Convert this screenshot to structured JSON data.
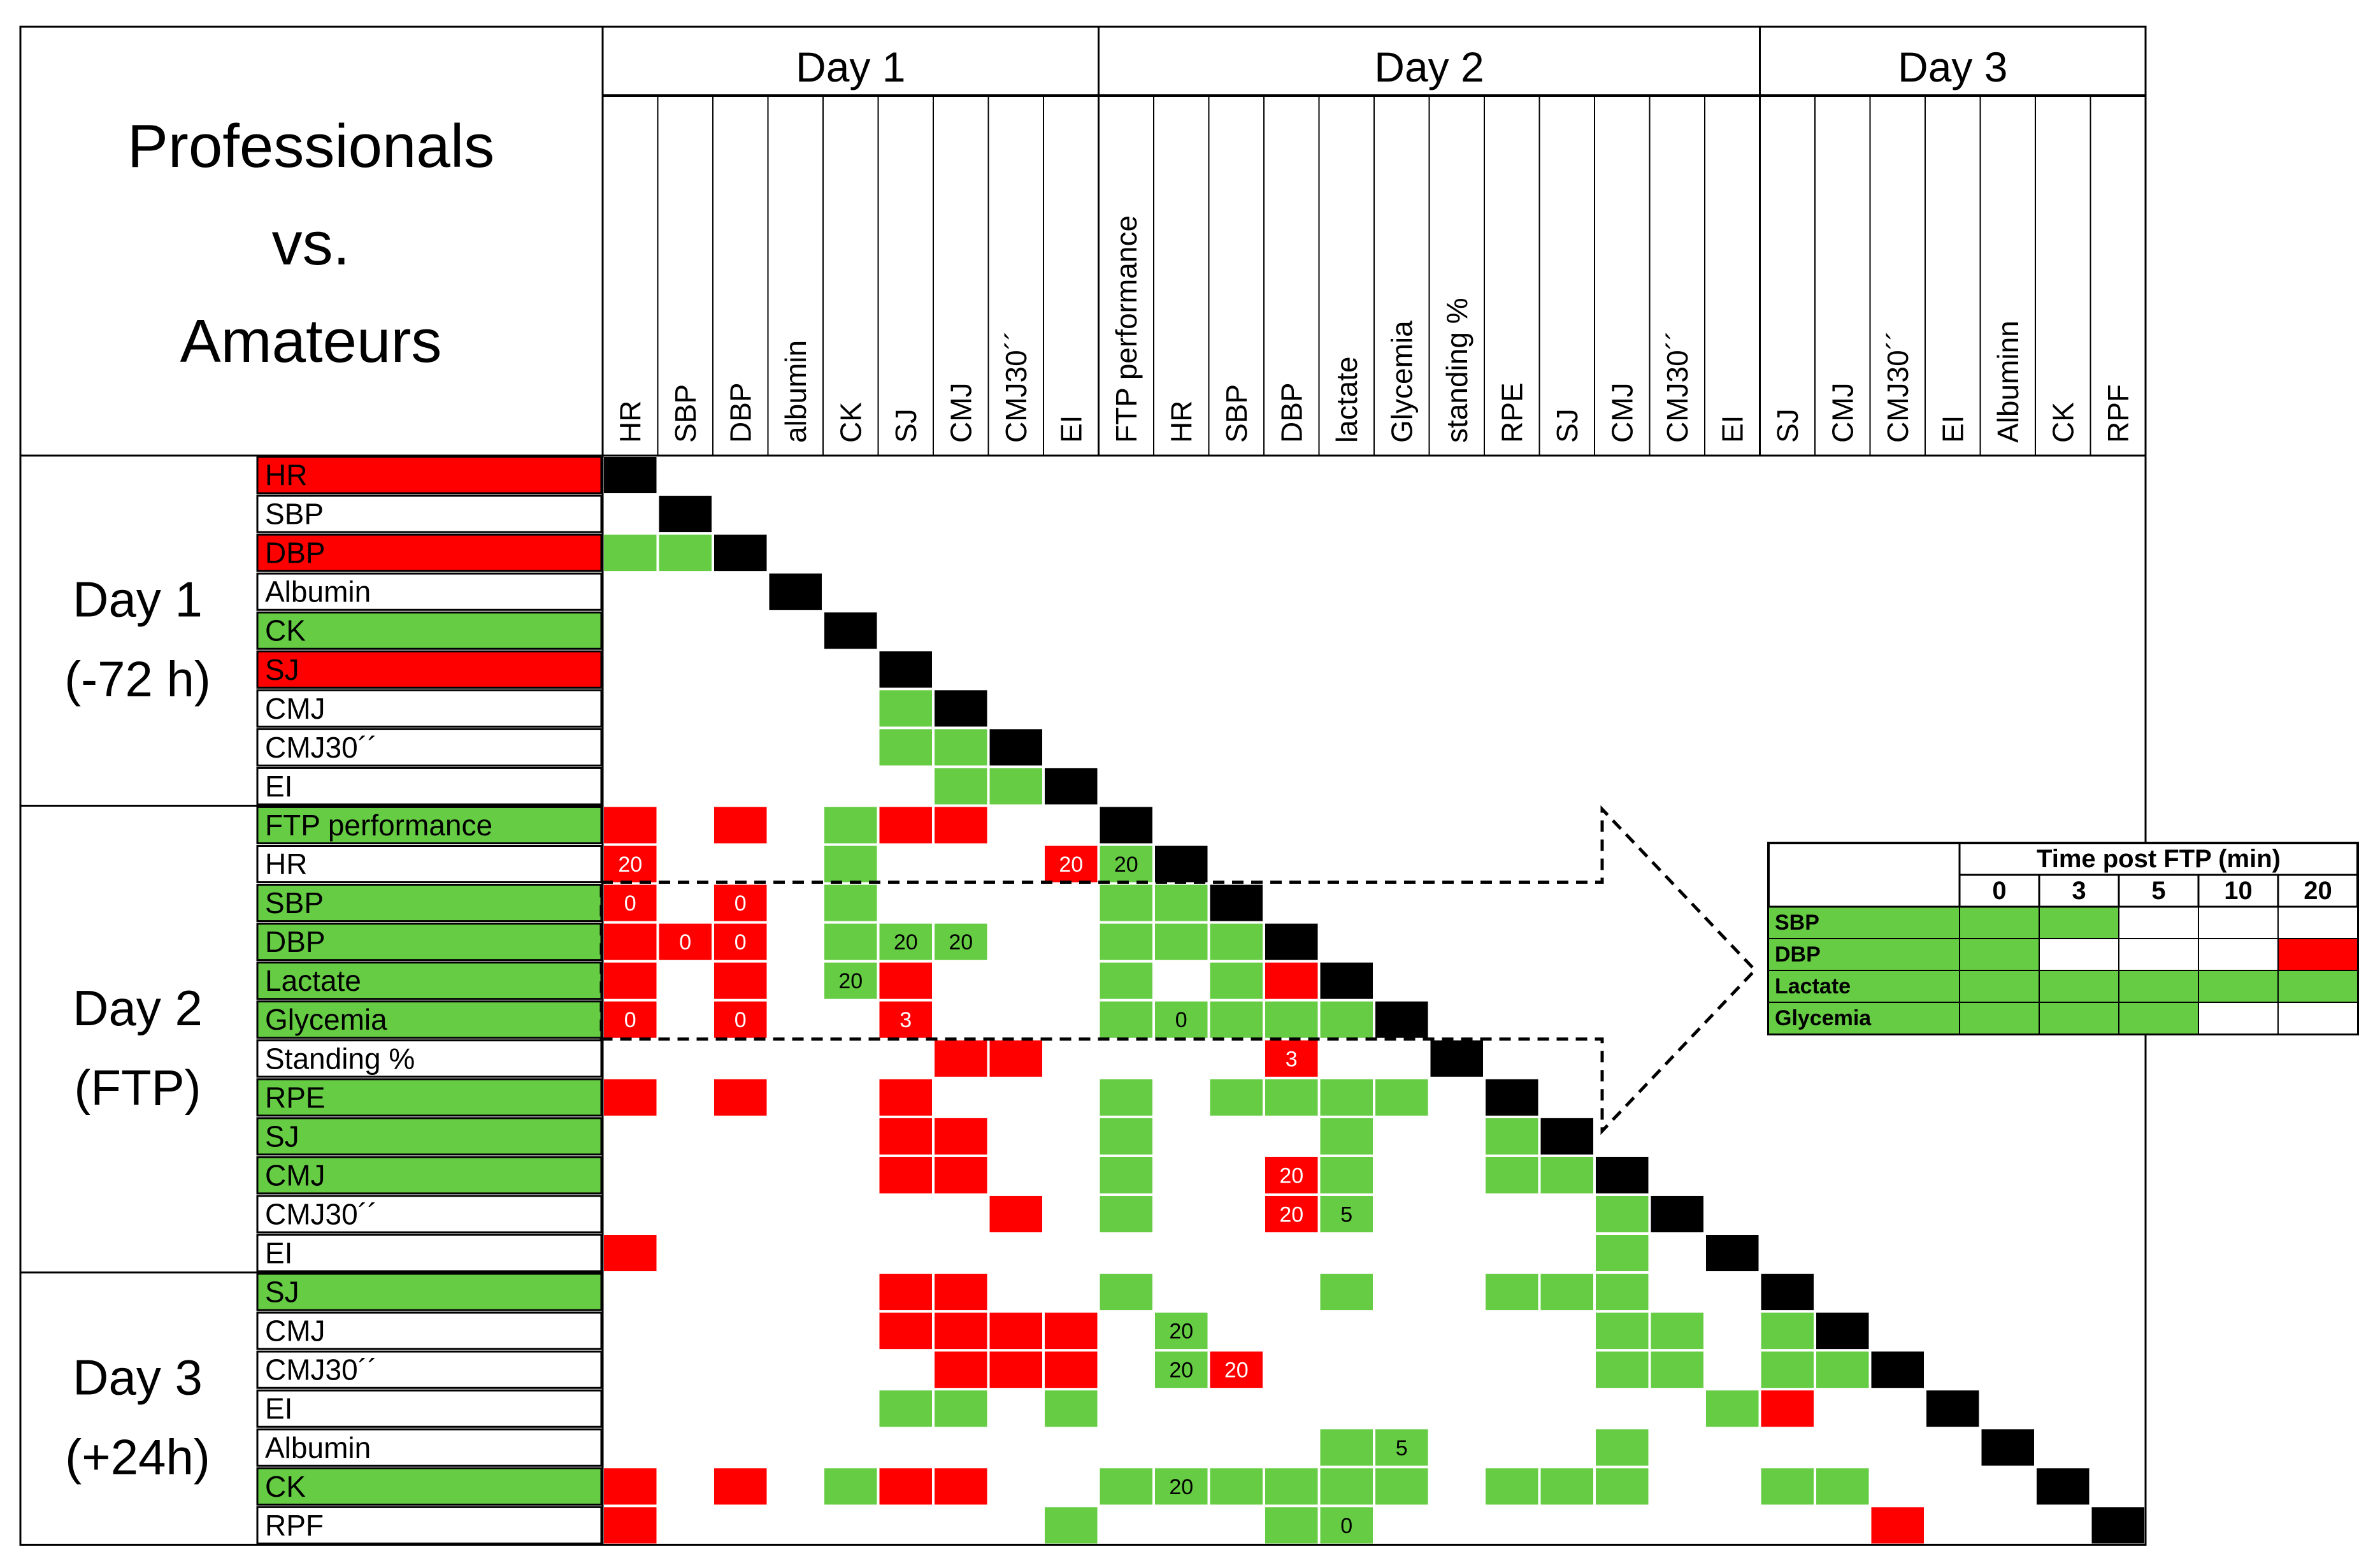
{
  "chart_data": {
    "type": "heatmap",
    "title": [
      "Professionals",
      "vs.",
      "Amateurs"
    ],
    "colors": {
      "green": "#66cc44",
      "red": "#ff0000",
      "diagonal": "#000000",
      "white": "#ffffff"
    },
    "days": [
      {
        "key": "d1",
        "label": "Day 1",
        "group_label": [
          "Day 1",
          "(-72 h)"
        ]
      },
      {
        "key": "d2",
        "label": "Day 2",
        "group_label": [
          "Day 2",
          "(FTP)"
        ]
      },
      {
        "key": "d3",
        "label": "Day 3",
        "group_label": [
          "Day 3",
          "(+24h)"
        ]
      }
    ],
    "columns": [
      {
        "day": "d1",
        "label": "HR"
      },
      {
        "day": "d1",
        "label": "SBP"
      },
      {
        "day": "d1",
        "label": "DBP"
      },
      {
        "day": "d1",
        "label": "albumin"
      },
      {
        "day": "d1",
        "label": "CK"
      },
      {
        "day": "d1",
        "label": "SJ"
      },
      {
        "day": "d1",
        "label": "CMJ"
      },
      {
        "day": "d1",
        "label": "CMJ30´´"
      },
      {
        "day": "d1",
        "label": "EI"
      },
      {
        "day": "d2",
        "label": "FTP performance"
      },
      {
        "day": "d2",
        "label": "HR"
      },
      {
        "day": "d2",
        "label": "SBP"
      },
      {
        "day": "d2",
        "label": "DBP"
      },
      {
        "day": "d2",
        "label": "lactate"
      },
      {
        "day": "d2",
        "label": "Glycemia"
      },
      {
        "day": "d2",
        "label": "standing %"
      },
      {
        "day": "d2",
        "label": "RPE"
      },
      {
        "day": "d2",
        "label": "SJ"
      },
      {
        "day": "d2",
        "label": "CMJ"
      },
      {
        "day": "d2",
        "label": "CMJ30´´"
      },
      {
        "day": "d2",
        "label": "EI"
      },
      {
        "day": "d3",
        "label": "SJ"
      },
      {
        "day": "d3",
        "label": "CMJ"
      },
      {
        "day": "d3",
        "label": "CMJ30´´"
      },
      {
        "day": "d3",
        "label": "EI"
      },
      {
        "day": "d3",
        "label": "Albuminn"
      },
      {
        "day": "d3",
        "label": "CK"
      },
      {
        "day": "d3",
        "label": "RPF"
      }
    ],
    "rows": [
      {
        "day": "d1",
        "label": "HR",
        "status": "red",
        "cells": [
          "B"
        ]
      },
      {
        "day": "d1",
        "label": "SBP",
        "status": "white",
        "cells": [
          "_",
          "B"
        ]
      },
      {
        "day": "d1",
        "label": "DBP",
        "status": "red",
        "cells": [
          "G",
          "G",
          "B"
        ]
      },
      {
        "day": "d1",
        "label": "Albumin",
        "status": "white",
        "cells": [
          "_",
          "_",
          "_",
          "B"
        ]
      },
      {
        "day": "d1",
        "label": "CK",
        "status": "green",
        "cells": [
          "_",
          "_",
          "_",
          "_",
          "B"
        ]
      },
      {
        "day": "d1",
        "label": "SJ",
        "status": "red",
        "cells": [
          "_",
          "_",
          "_",
          "_",
          "_",
          "B"
        ]
      },
      {
        "day": "d1",
        "label": "CMJ",
        "status": "white",
        "cells": [
          "_",
          "_",
          "_",
          "_",
          "_",
          "G",
          "B"
        ]
      },
      {
        "day": "d1",
        "label": "CMJ30´´",
        "status": "white",
        "cells": [
          "_",
          "_",
          "_",
          "_",
          "_",
          "G",
          "G",
          "B"
        ]
      },
      {
        "day": "d1",
        "label": "EI",
        "status": "white",
        "cells": [
          "_",
          "_",
          "_",
          "_",
          "_",
          "_",
          "G",
          "G",
          "B"
        ]
      },
      {
        "day": "d2",
        "label": "FTP  performance",
        "status": "green",
        "cells": [
          "R",
          "_",
          "R",
          "_",
          "G",
          "R",
          "R",
          "_",
          "_",
          "B"
        ]
      },
      {
        "day": "d2",
        "label": "HR",
        "status": "white",
        "cells": [
          "R:20",
          "_",
          "_",
          "_",
          "G",
          "_",
          "_",
          "_",
          "R:20",
          "G:20",
          "B"
        ]
      },
      {
        "day": "d2",
        "label": "SBP",
        "status": "green",
        "cells": [
          "R:0",
          "_",
          "R:0",
          "_",
          "G",
          "_",
          "_",
          "_",
          "_",
          "G",
          "G",
          "B"
        ]
      },
      {
        "day": "d2",
        "label": "DBP",
        "status": "green",
        "cells": [
          "R",
          "R:0",
          "R:0",
          "_",
          "G",
          "G:20",
          "G:20",
          "_",
          "_",
          "G",
          "G",
          "G",
          "B"
        ]
      },
      {
        "day": "d2",
        "label": "Lactate",
        "status": "green",
        "cells": [
          "R",
          "_",
          "R",
          "_",
          "G:20",
          "R",
          "_",
          "_",
          "_",
          "G",
          "_",
          "G",
          "R",
          "B"
        ]
      },
      {
        "day": "d2",
        "label": "Glycemia",
        "status": "green",
        "cells": [
          "R:0",
          "_",
          "R:0",
          "_",
          "_",
          "R:3",
          "_",
          "_",
          "_",
          "G",
          "G:0",
          "G",
          "G",
          "G",
          "B"
        ]
      },
      {
        "day": "d2",
        "label": "Standing %",
        "status": "white",
        "cells": [
          "_",
          "_",
          "_",
          "_",
          "_",
          "_",
          "R",
          "R",
          "_",
          "_",
          "_",
          "_",
          "R:3",
          "_",
          "_",
          "B"
        ]
      },
      {
        "day": "d2",
        "label": "RPE",
        "status": "green",
        "cells": [
          "R",
          "_",
          "R",
          "_",
          "_",
          "R",
          "_",
          "_",
          "_",
          "G",
          "_",
          "G",
          "G",
          "G",
          "G",
          "_",
          "B"
        ]
      },
      {
        "day": "d2",
        "label": "SJ",
        "status": "green",
        "cells": [
          "_",
          "_",
          "_",
          "_",
          "_",
          "R",
          "R",
          "_",
          "_",
          "G",
          "_",
          "_",
          "_",
          "G",
          "_",
          "_",
          "G",
          "B"
        ]
      },
      {
        "day": "d2",
        "label": "CMJ",
        "status": "green",
        "cells": [
          "_",
          "_",
          "_",
          "_",
          "_",
          "R",
          "R",
          "_",
          "_",
          "G",
          "_",
          "_",
          "R:20",
          "G",
          "_",
          "_",
          "G",
          "G",
          "B"
        ]
      },
      {
        "day": "d2",
        "label": "CMJ30´´",
        "status": "white",
        "cells": [
          "_",
          "_",
          "_",
          "_",
          "_",
          "_",
          "_",
          "R",
          "_",
          "G",
          "_",
          "_",
          "R:20",
          "G:5",
          "_",
          "_",
          "_",
          "_",
          "G",
          "B"
        ]
      },
      {
        "day": "d2",
        "label": "EI",
        "status": "white",
        "cells": [
          "R",
          "_",
          "_",
          "_",
          "_",
          "_",
          "_",
          "_",
          "_",
          "_",
          "_",
          "_",
          "_",
          "_",
          "_",
          "_",
          "_",
          "_",
          "G",
          "_",
          "B"
        ]
      },
      {
        "day": "d3",
        "label": "SJ",
        "status": "green",
        "cells": [
          "_",
          "_",
          "_",
          "_",
          "_",
          "R",
          "R",
          "_",
          "_",
          "G",
          "_",
          "_",
          "_",
          "G",
          "_",
          "_",
          "G",
          "G",
          "G",
          "_",
          "_",
          "B"
        ]
      },
      {
        "day": "d3",
        "label": "CMJ",
        "status": "white",
        "cells": [
          "_",
          "_",
          "_",
          "_",
          "_",
          "R",
          "R",
          "R",
          "R",
          "_",
          "G:20",
          "_",
          "_",
          "_",
          "_",
          "_",
          "_",
          "_",
          "G",
          "G",
          "_",
          "G",
          "B"
        ]
      },
      {
        "day": "d3",
        "label": "CMJ30´´",
        "status": "white",
        "cells": [
          "_",
          "_",
          "_",
          "_",
          "_",
          "_",
          "R",
          "R",
          "R",
          "_",
          "G:20",
          "R:20",
          "_",
          "_",
          "_",
          "_",
          "_",
          "_",
          "G",
          "G",
          "_",
          "G",
          "G",
          "B"
        ]
      },
      {
        "day": "d3",
        "label": "EI",
        "status": "white",
        "cells": [
          "_",
          "_",
          "_",
          "_",
          "_",
          "G",
          "G",
          "_",
          "G",
          "_",
          "_",
          "_",
          "_",
          "_",
          "_",
          "_",
          "_",
          "_",
          "_",
          "_",
          "G",
          "R",
          "_",
          "_",
          "B"
        ]
      },
      {
        "day": "d3",
        "label": "Albumin",
        "status": "white",
        "cells": [
          "_",
          "_",
          "_",
          "_",
          "_",
          "_",
          "_",
          "_",
          "_",
          "_",
          "_",
          "_",
          "_",
          "G",
          "G:5",
          "_",
          "_",
          "_",
          "G",
          "_",
          "_",
          "_",
          "_",
          "_",
          "_",
          "B"
        ]
      },
      {
        "day": "d3",
        "label": "CK",
        "status": "green",
        "cells": [
          "R",
          "_",
          "R",
          "_",
          "G",
          "R",
          "R",
          "_",
          "_",
          "G",
          "G:20",
          "G",
          "G",
          "G",
          "G",
          "_",
          "G",
          "G",
          "G",
          "_",
          "_",
          "G",
          "G",
          "_",
          "_",
          "_",
          "B"
        ]
      },
      {
        "day": "d3",
        "label": "RPF",
        "status": "white",
        "cells": [
          "R",
          "_",
          "_",
          "_",
          "_",
          "_",
          "_",
          "_",
          "G",
          "_",
          "_",
          "_",
          "G",
          "G:0",
          "_",
          "_",
          "_",
          "_",
          "_",
          "_",
          "_",
          "_",
          "_",
          "R",
          "_",
          "_",
          "_",
          "B"
        ]
      }
    ],
    "inset": {
      "title": "Time post FTP (min)",
      "times": [
        "0",
        "3",
        "5",
        "10",
        "20"
      ],
      "rows": [
        {
          "label": "SBP",
          "cells": [
            "G",
            "G",
            "_",
            "_",
            "_"
          ]
        },
        {
          "label": "DBP",
          "cells": [
            "G",
            "_",
            "_",
            "_",
            "R"
          ]
        },
        {
          "label": "Lactate",
          "cells": [
            "G",
            "G",
            "G",
            "G",
            "G"
          ]
        },
        {
          "label": "Glycemia",
          "cells": [
            "G",
            "G",
            "G",
            "_",
            "_"
          ]
        }
      ]
    }
  }
}
